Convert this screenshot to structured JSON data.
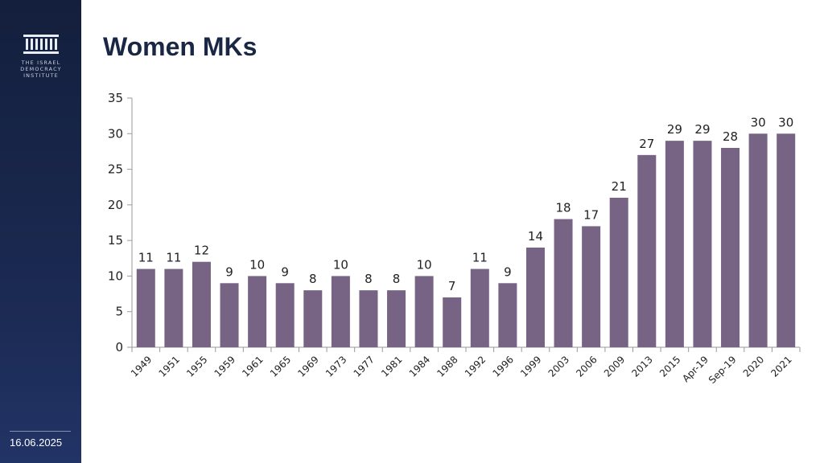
{
  "sidebar": {
    "logo_lines": [
      "THE ISRAEL",
      "DEMOCRACY",
      "INSTITUTE"
    ],
    "date": "16.06.2025"
  },
  "colors": {
    "sidebar": "#1c2b55",
    "bar": "#776383",
    "title": "#1a2744"
  },
  "chart_data": {
    "type": "bar",
    "title": "Women MKs",
    "xlabel": "",
    "ylabel": "",
    "categories": [
      "1949",
      "1951",
      "1955",
      "1959",
      "1961",
      "1965",
      "1969",
      "1973",
      "1977",
      "1981",
      "1984",
      "1988",
      "1992",
      "1996",
      "1999",
      "2003",
      "2006",
      "2009",
      "2013",
      "2015",
      "Apr-19",
      "Sep-19",
      "2020",
      "2021"
    ],
    "values": [
      11,
      11,
      12,
      9,
      10,
      9,
      8,
      10,
      8,
      8,
      10,
      7,
      11,
      9,
      14,
      18,
      17,
      21,
      27,
      29,
      29,
      28,
      30,
      30
    ],
    "ylim": [
      0,
      35
    ],
    "yticks": [
      0,
      5,
      10,
      15,
      20,
      25,
      30,
      35
    ],
    "grid": false,
    "legend": "none"
  }
}
